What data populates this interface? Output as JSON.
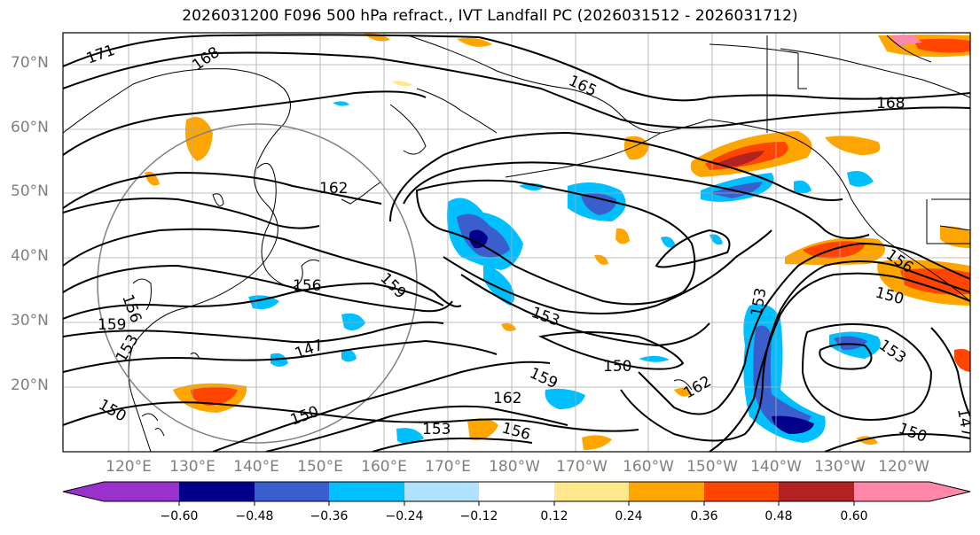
{
  "title": "2026031200 F096 500 hPa refract., IVT Landfall PC (2026031512 - 2026031712)",
  "lat_labels": [
    "70°N",
    "60°N",
    "50°N",
    "40°N",
    "30°N",
    "20°N"
  ],
  "lon_labels": [
    "120°E",
    "130°E",
    "140°E",
    "150°E",
    "160°E",
    "170°E",
    "180°W",
    "170°W",
    "160°W",
    "150°W",
    "140°W",
    "130°W",
    "120°W"
  ],
  "colorbar": {
    "ticks": [
      "−0.60",
      "−0.48",
      "−0.36",
      "−0.24",
      "−0.12",
      "0.12",
      "0.24",
      "0.36",
      "0.48",
      "0.60"
    ],
    "colors": [
      "#9932cc",
      "#00008b",
      "#3a5fcd",
      "#00bfff",
      "#b0e2ff",
      "#ffffff",
      "#ffe88c",
      "#ffa500",
      "#ff4500",
      "#b22222",
      "#ff88aa"
    ]
  },
  "contour_labels": [
    "171",
    "168",
    "165",
    "168",
    "162",
    "159",
    "156",
    "156",
    "159",
    "153",
    "153",
    "150",
    "147",
    "162",
    "159",
    "150",
    "153",
    "156",
    "150",
    "162",
    "153",
    "153",
    "156",
    "150",
    "150",
    "147"
  ],
  "shading_colors": {
    "pos_low": "#ffe88c",
    "pos_mid": "#ffa500",
    "pos_high": "#ff4500",
    "pos_max": "#b22222",
    "neg_low": "#b0e2ff",
    "neg_mid": "#00bfff",
    "neg_high": "#3a5fcd",
    "neg_max": "#00008b"
  }
}
